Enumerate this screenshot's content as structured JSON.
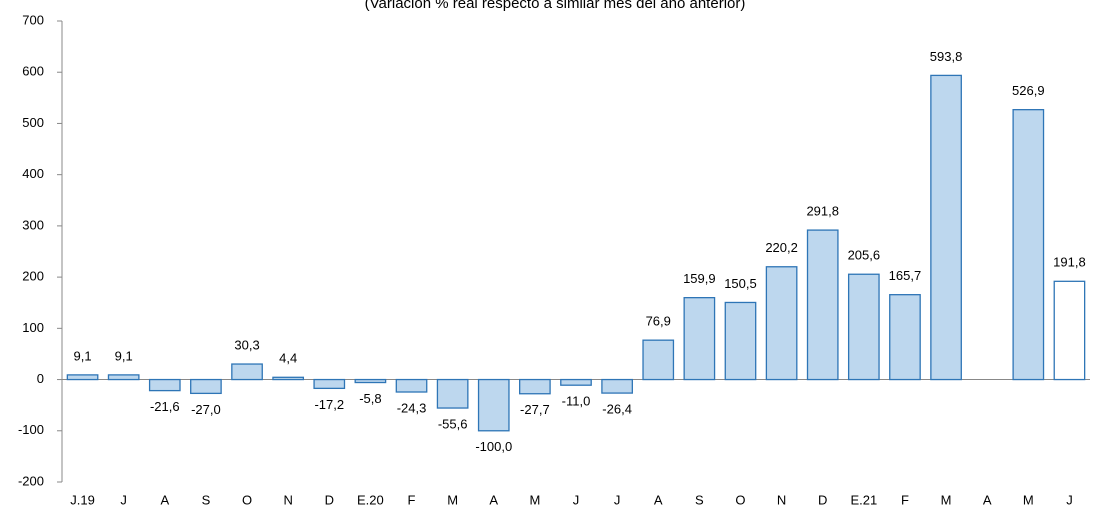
{
  "chart_data": {
    "type": "bar",
    "subtitle": "(Variación % real respecto a similar mes del año anterior)",
    "categories": [
      "J.19",
      "J",
      "A",
      "S",
      "O",
      "N",
      "D",
      "E.20",
      "F",
      "M",
      "A",
      "M",
      "J",
      "J",
      "A",
      "S",
      "O",
      "N",
      "D",
      "E.21",
      "F",
      "M",
      "A",
      "M",
      "J"
    ],
    "values": [
      9.1,
      9.1,
      -21.6,
      -27.0,
      30.3,
      4.4,
      -17.2,
      -5.8,
      -24.3,
      -55.6,
      -100.0,
      -27.7,
      -11.0,
      -26.4,
      76.9,
      159.9,
      150.5,
      220.2,
      291.8,
      205.6,
      165.7,
      593.8,
      null,
      526.9,
      191.8
    ],
    "value_labels": [
      "9,1",
      "9,1",
      "-21,6",
      "-27,0",
      "30,3",
      "4,4",
      "-17,2",
      "-5,8",
      "-24,3",
      "-55,6",
      "-100,0",
      "-27,7",
      "-11,0",
      "-26,4",
      "76,9",
      "159,9",
      "150,5",
      "220,2",
      "291,8",
      "205,6",
      "165,7",
      "593,8",
      null,
      "526,9",
      "191,8"
    ],
    "colors": [
      "#bdd7ee",
      "#bdd7ee",
      "#bdd7ee",
      "#bdd7ee",
      "#bdd7ee",
      "#bdd7ee",
      "#bdd7ee",
      "#bdd7ee",
      "#bdd7ee",
      "#bdd7ee",
      "#bdd7ee",
      "#bdd7ee",
      "#bdd7ee",
      "#bdd7ee",
      "#bdd7ee",
      "#bdd7ee",
      "#bdd7ee",
      "#bdd7ee",
      "#bdd7ee",
      "#bdd7ee",
      "#bdd7ee",
      "#bdd7ee",
      "#bdd7ee",
      "#bdd7ee",
      "#ffffff"
    ],
    "edge_color": "#2e75b6",
    "ylim": [
      -200,
      700
    ],
    "yticks": [
      -200,
      -100,
      0,
      100,
      200,
      300,
      400,
      500,
      600,
      700
    ]
  }
}
